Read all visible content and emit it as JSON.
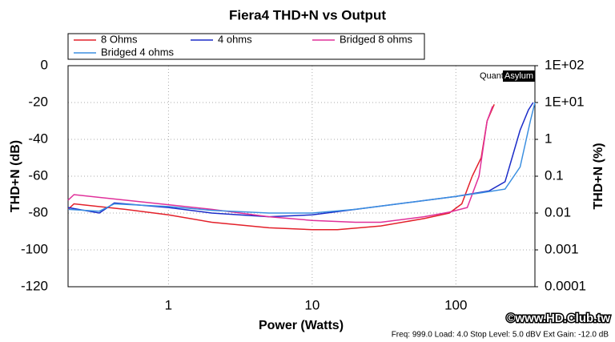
{
  "chart_data": {
    "type": "line",
    "title": "Fiera4 THD+N vs Output",
    "x_label": "Power (Watts)",
    "y_label": "THD+N (dB)",
    "y2_label": "THD+N (%)",
    "x_log": true,
    "y2_log": true,
    "grid": true,
    "xlim": [
      0.2,
      355
    ],
    "xticks": [
      1,
      10,
      100
    ],
    "ylim": [
      -120,
      0
    ],
    "yticks": [
      -120,
      -100,
      -80,
      -60,
      -40,
      -20,
      0
    ],
    "y2lim": [
      0.0001,
      100
    ],
    "y2ticks": [
      0.0001,
      0.001,
      0.01,
      0.1,
      1,
      {
        "value": 10,
        "label": "1E+01"
      },
      {
        "value": 100,
        "label": "1E+02"
      }
    ],
    "series": [
      {
        "name": "8 Ohms",
        "color": "#e3202a",
        "x": [
          0.2,
          0.22,
          0.5,
          1,
          2,
          5,
          10,
          15,
          30,
          60,
          90,
          110,
          130,
          150,
          165,
          185
        ],
        "values": [
          -78,
          -75,
          -78,
          -81,
          -85,
          -88,
          -89,
          -89,
          -87,
          -83,
          -80,
          -75,
          -60,
          -50,
          -30,
          -21
        ]
      },
      {
        "name": "4 ohms",
        "color": "#1a2bc8",
        "x": [
          0.2,
          0.33,
          0.42,
          1,
          2,
          5,
          10,
          20,
          50,
          100,
          170,
          220,
          280,
          320,
          345
        ],
        "values": [
          -77,
          -80,
          -74.5,
          -77,
          -80,
          -82,
          -81,
          -78,
          -74,
          -71,
          -68,
          -63,
          -35,
          -24,
          -20
        ]
      },
      {
        "name": "Bridged 8 ohms",
        "color": "#e0309a",
        "x": [
          0.2,
          0.22,
          0.5,
          1,
          2,
          5,
          10,
          20,
          30,
          60,
          90,
          120,
          145,
          165,
          180
        ],
        "values": [
          -73,
          -70,
          -73,
          -75.5,
          -78,
          -82,
          -84,
          -85,
          -85,
          -82,
          -79.5,
          -77,
          -60,
          -30,
          -22
        ]
      },
      {
        "name": "Bridged 4 ohms",
        "color": "#3b8fe0",
        "x": [
          0.2,
          0.33,
          0.42,
          1,
          2,
          5,
          10,
          20,
          50,
          100,
          150,
          220,
          280,
          330,
          355
        ],
        "values": [
          -78,
          -79,
          -75,
          -76.5,
          -78.5,
          -80,
          -80,
          -78,
          -74,
          -71,
          -69,
          -67,
          -55,
          -30,
          -20
        ]
      }
    ],
    "annotations": {
      "logo_left": "Quant",
      "logo_right": "Asylum",
      "watermark": "©www.HD.Club.tw",
      "footer": "Freq: 999.0 Load: 4.0 Stop Level: 5.0 dBV  Ext Gain: -12.0 dB"
    }
  }
}
